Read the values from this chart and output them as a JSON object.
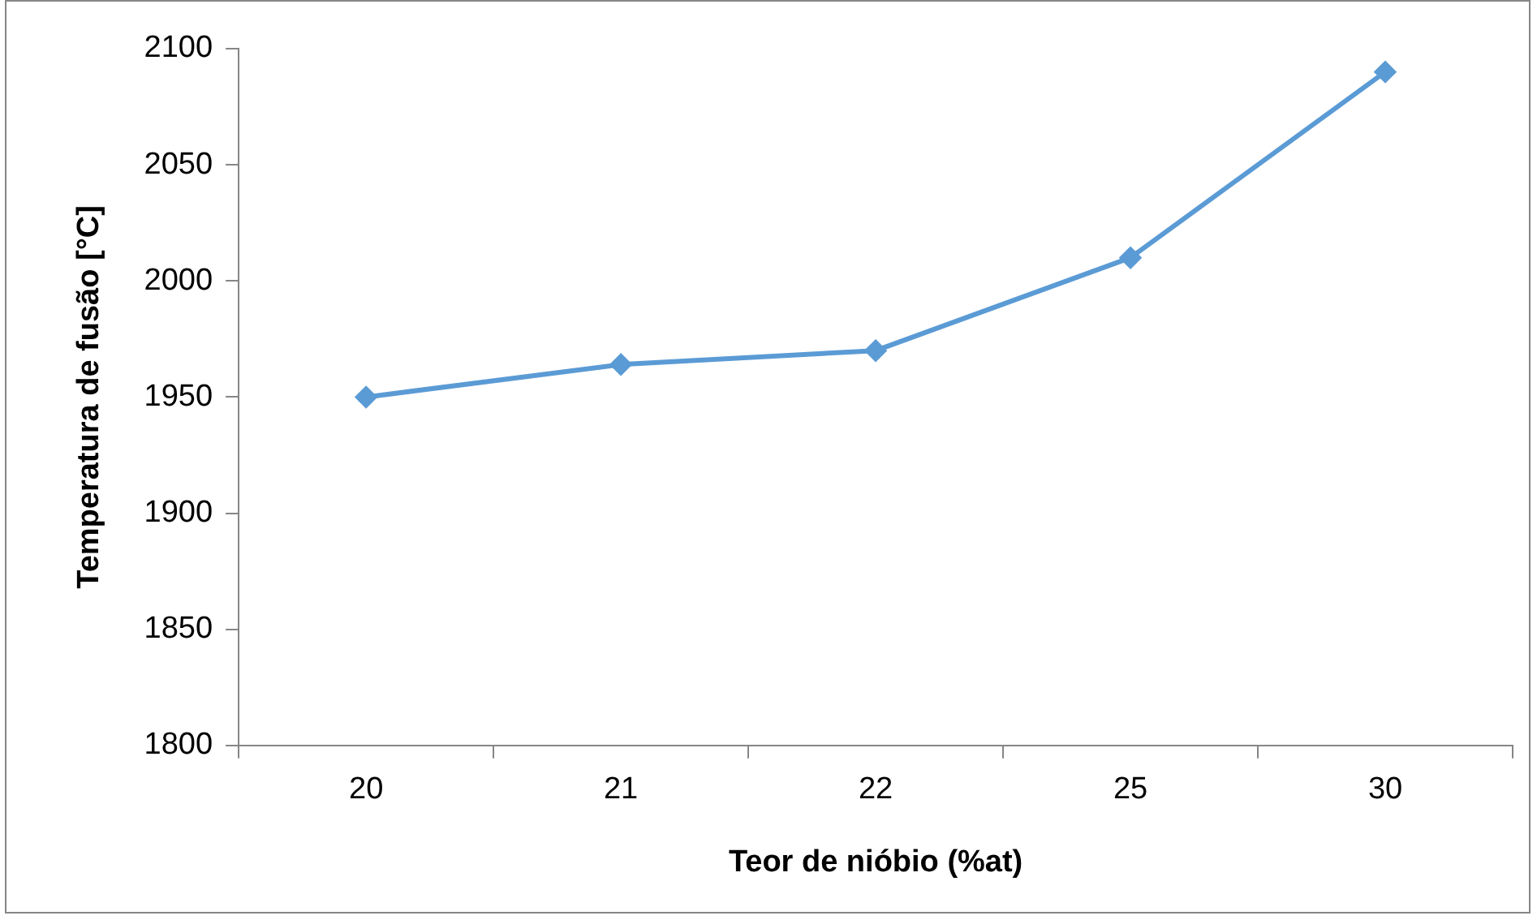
{
  "chart_data": {
    "type": "line",
    "xlabel": "Teor de nióbio (%at)",
    "ylabel": "Temperatura de fusão [°C]",
    "categories": [
      "20",
      "21",
      "22",
      "25",
      "30"
    ],
    "series": [
      {
        "color": "#5b9bd5",
        "values": [
          1950,
          1964,
          1970,
          2010,
          2090
        ]
      }
    ],
    "ylim": [
      1800,
      2100
    ],
    "yticks": [
      1800,
      1850,
      1900,
      1950,
      2000,
      2050,
      2100
    ],
    "marker": "diamond",
    "line_style": "solid",
    "grid": false,
    "legend": false
  }
}
